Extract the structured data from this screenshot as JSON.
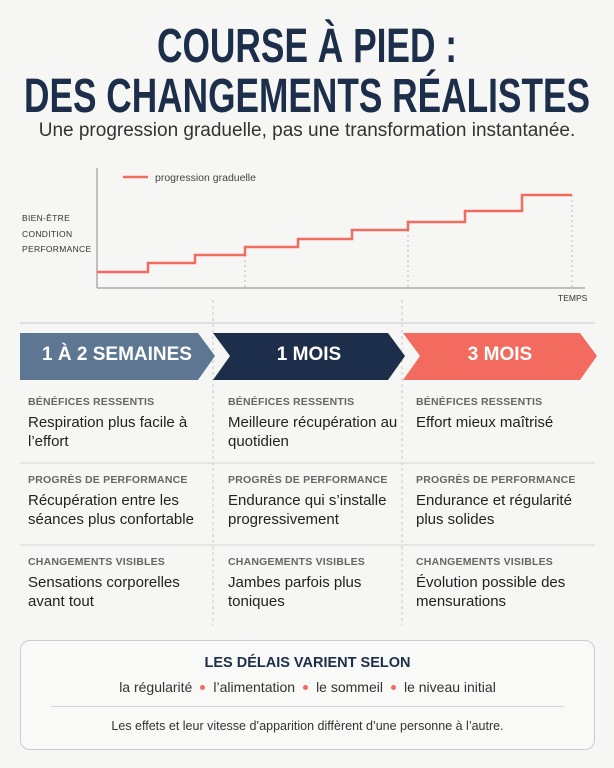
{
  "header": {
    "title_lines": [
      "COURSE À PIED :",
      "DES CHANGEMENTS RÉALISTES"
    ],
    "subtitle": "Une progression graduelle, pas une transformation instantanée."
  },
  "chart": {
    "legend": "progression graduelle",
    "y_labels": [
      "BIEN-ÊTRE",
      "CONDITION",
      "PERFORMANCE"
    ],
    "x_label": "TEMPS"
  },
  "columns": [
    {
      "title": "1 À 2 SEMAINES",
      "sections": [
        {
          "label": "BÉNÉFICES RESSENTIS",
          "text": "Respiration plus facile à l’effort"
        },
        {
          "label": "PROGRÈS DE PERFORMANCE",
          "text": "Récupération entre les séances plus confortable"
        },
        {
          "label": "CHANGEMENTS VISIBLES",
          "text": "Sensations corporelles avant tout"
        }
      ]
    },
    {
      "title": "1 MOIS",
      "sections": [
        {
          "label": "BÉNÉFICES RESSENTIS",
          "text": "Meilleure récupération au quotidien"
        },
        {
          "label": "PROGRÈS DE PERFORMANCE",
          "text": "Endurance qui s’installe progressivement"
        },
        {
          "label": "CHANGEMENTS VISIBLES",
          "text": "Jambes parfois plus toniques"
        }
      ]
    },
    {
      "title": "3 MOIS",
      "sections": [
        {
          "label": "BÉNÉFICES RESSENTIS",
          "text": "Effort mieux maîtrisé"
        },
        {
          "label": "PROGRÈS DE PERFORMANCE",
          "text": "Endurance et régularité plus solides"
        },
        {
          "label": "CHANGEMENTS VISIBLES",
          "text": "Évolution possible des mensurations"
        }
      ]
    }
  ],
  "footer": {
    "title": "LES DÉLAIS VARIENT SELON",
    "factors": [
      "la régularité",
      "l’alimentation",
      "le sommeil",
      "le niveau initial"
    ],
    "note": "Les effets et leur vitesse d’apparition diffèrent d’une personne à l’autre."
  }
}
